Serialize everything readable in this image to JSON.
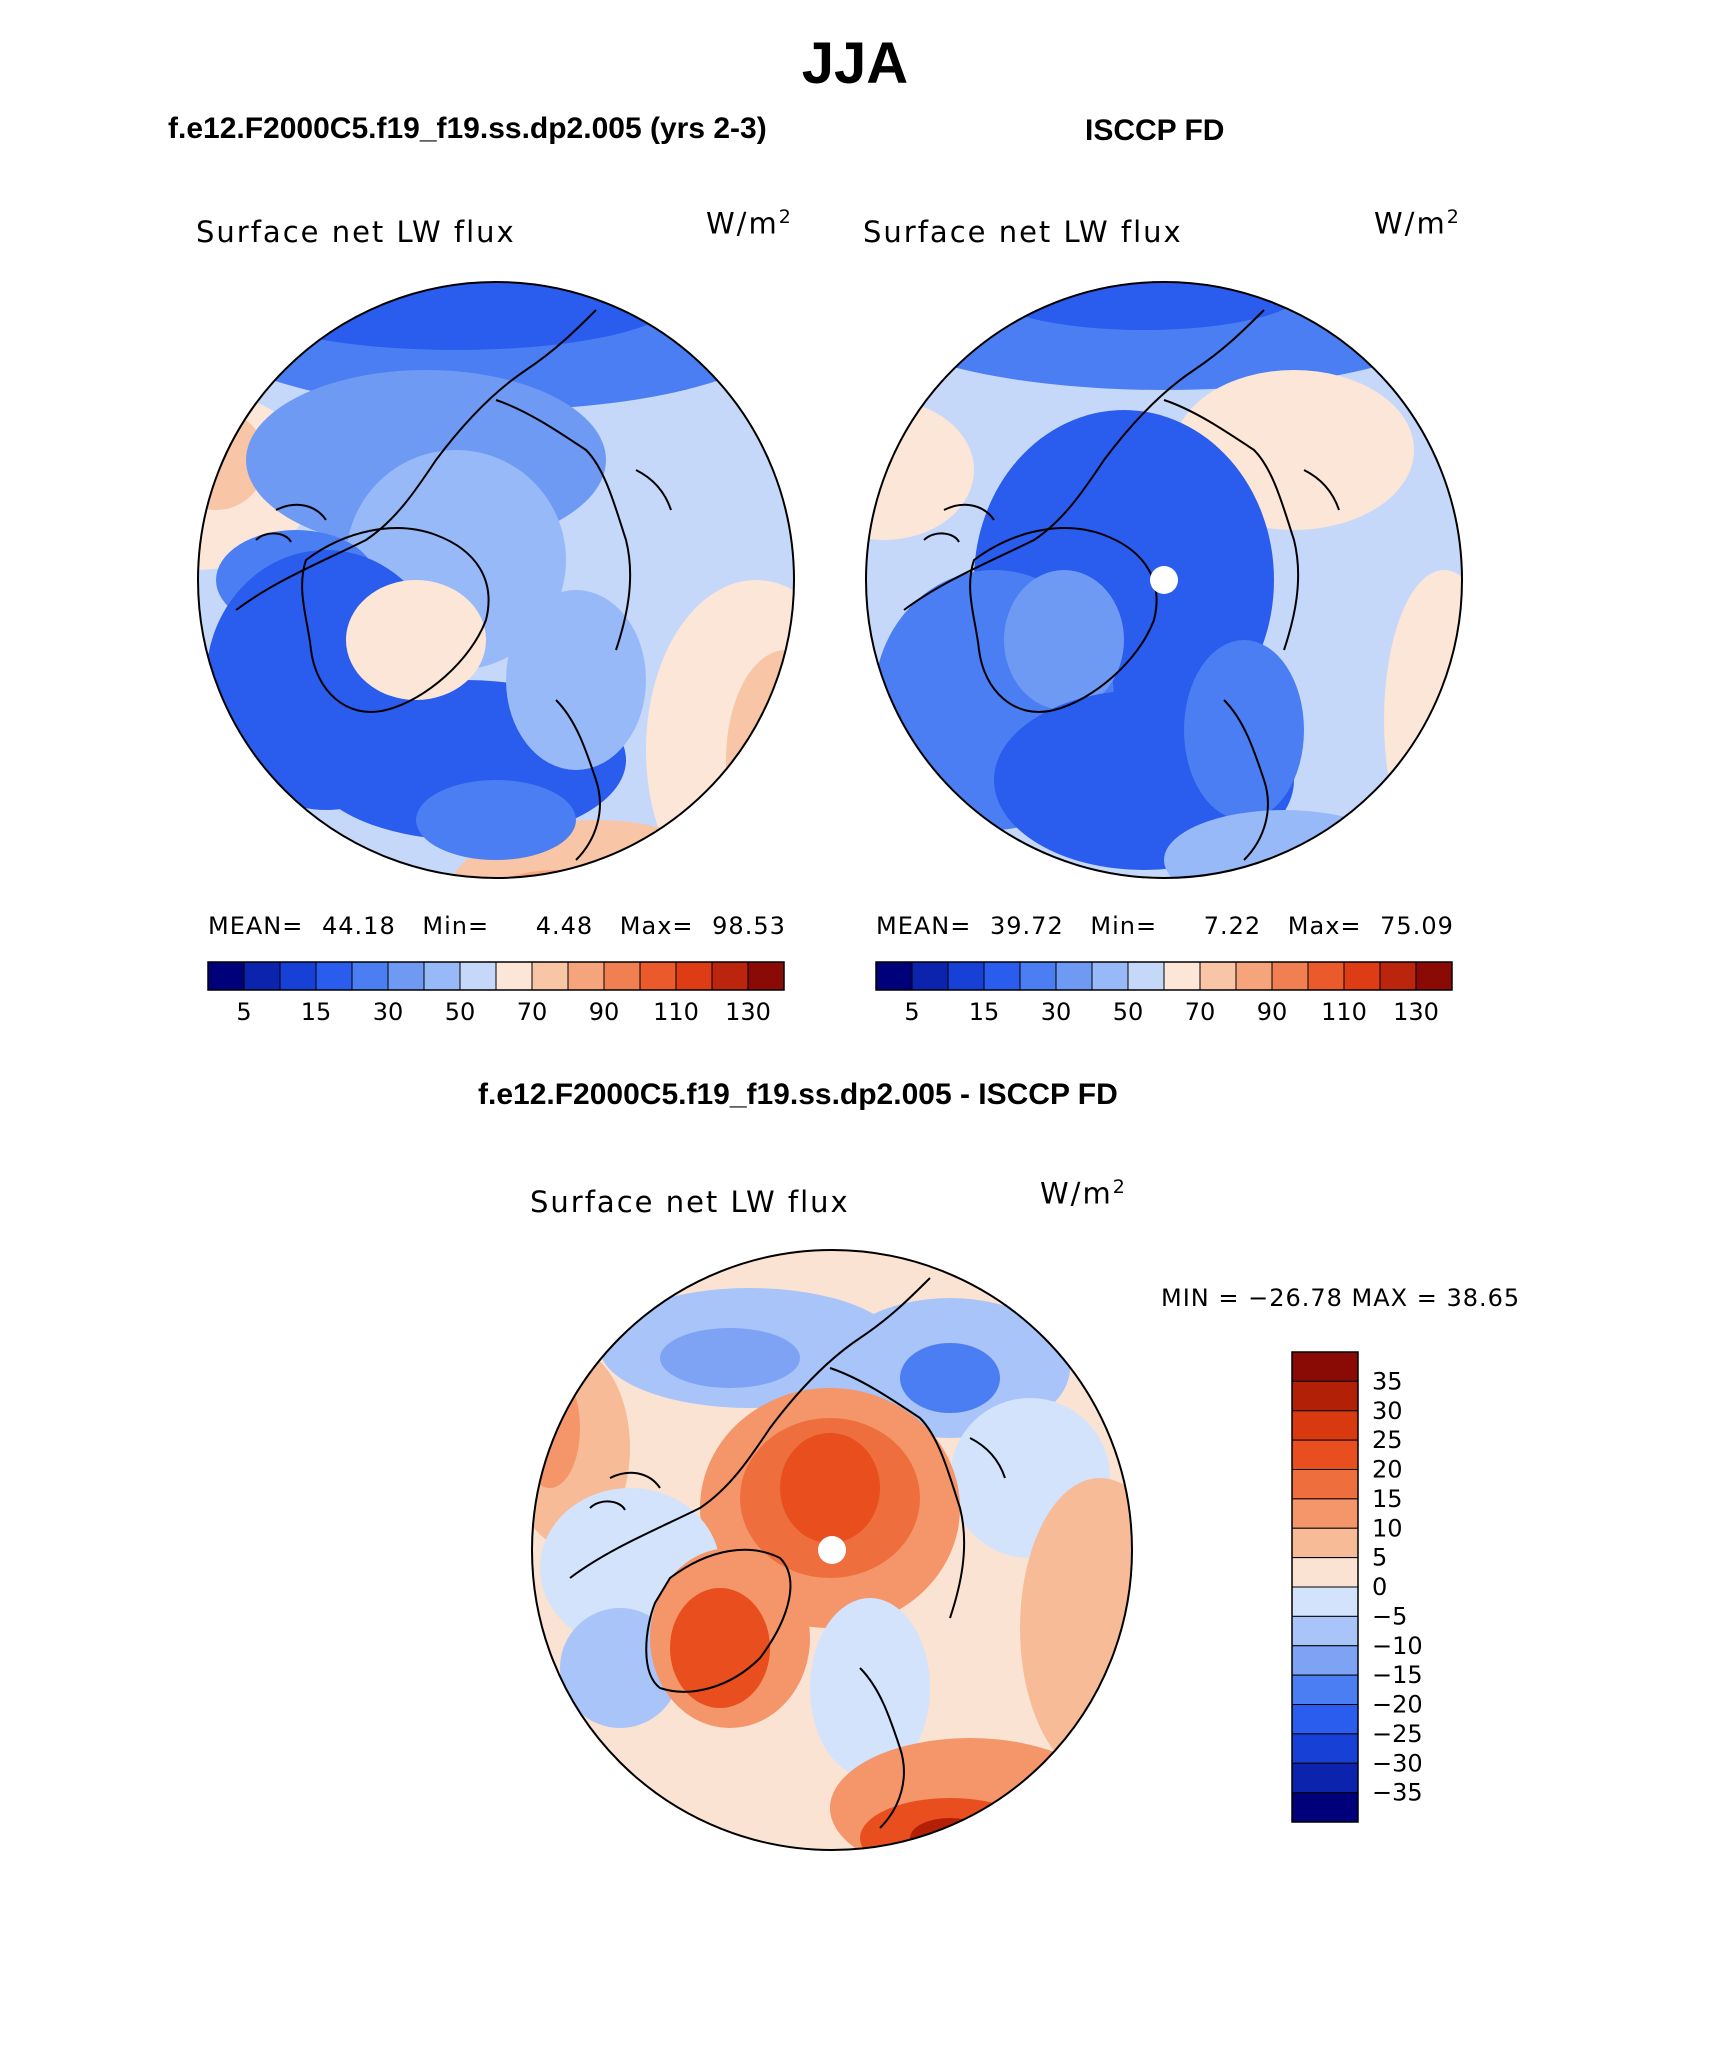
{
  "header": {
    "title": "JJA",
    "left_subtitle": "f.e12.F2000C5.f19_f19.ss.dp2.005 (yrs 2-3)",
    "right_subtitle": "ISCCP FD",
    "diff_subtitle": "f.e12.F2000C5.f19_f19.ss.dp2.005 - ISCCP FD"
  },
  "colors": {
    "abs_palette": [
      "#00007a",
      "#0c24ad",
      "#1741d6",
      "#2a5cee",
      "#4a7ef2",
      "#6e9af4",
      "#98b9f7",
      "#c5d8fa",
      "#fbe6d8",
      "#f8c5a7",
      "#f5a47c",
      "#f07f52",
      "#ea5a2a",
      "#de3c14",
      "#bb240d",
      "#8a0b06"
    ],
    "diff_palette": [
      "#00007a",
      "#0c24ad",
      "#1741d6",
      "#2a5cee",
      "#4a7ef2",
      "#7ea3f5",
      "#a9c4f8",
      "#d2e3fb",
      "#fbe3d3",
      "#f8bb98",
      "#f4956a",
      "#ef6e3e",
      "#e84e1e",
      "#d8390f",
      "#b32008",
      "#8a0b06"
    ],
    "land_line": "#000000"
  },
  "chart_data": [
    {
      "type": "heatmap",
      "projection": "north-polar-stereographic",
      "panel": "model",
      "title": "Surface net LW flux",
      "units": "W/m²",
      "stats": {
        "mean_label": "MEAN=",
        "mean": "44.18",
        "min_label": "Min=",
        "min": "4.48",
        "max_label": "Max=",
        "max": "98.53"
      },
      "colorbar": {
        "levels": [
          5,
          10,
          15,
          20,
          30,
          40,
          50,
          60,
          70,
          80,
          90,
          100,
          110,
          120,
          130
        ],
        "tick_labels": [
          "5",
          "15",
          "30",
          "50",
          "70",
          "90",
          "110",
          "130"
        ]
      },
      "has_pole_mask": false
    },
    {
      "type": "heatmap",
      "projection": "north-polar-stereographic",
      "panel": "observations",
      "title": "Surface net LW flux",
      "units": "W/m²",
      "stats": {
        "mean_label": "MEAN=",
        "mean": "39.72",
        "min_label": "Min=",
        "min": "7.22",
        "max_label": "Max=",
        "max": "75.09"
      },
      "colorbar": {
        "levels": [
          5,
          10,
          15,
          20,
          30,
          40,
          50,
          60,
          70,
          80,
          90,
          100,
          110,
          120,
          130
        ],
        "tick_labels": [
          "5",
          "15",
          "30",
          "50",
          "70",
          "90",
          "110",
          "130"
        ]
      },
      "has_pole_mask": true
    },
    {
      "type": "heatmap",
      "projection": "north-polar-stereographic",
      "panel": "difference",
      "title": "Surface net LW flux",
      "units": "W/m²",
      "minmax_text": "MIN = −26.78 MAX =  38.65",
      "stats": {
        "min": "-26.78",
        "max": "38.65"
      },
      "colorbar": {
        "levels": [
          -35,
          -30,
          -25,
          -20,
          -15,
          -10,
          -5,
          0,
          5,
          10,
          15,
          20,
          25,
          30,
          35
        ],
        "tick_labels": [
          "35",
          "30",
          "25",
          "20",
          "15",
          "10",
          "5",
          "0",
          "−5",
          "−10",
          "−15",
          "−20",
          "−25",
          "−30",
          "−35"
        ]
      },
      "has_pole_mask": true
    }
  ]
}
